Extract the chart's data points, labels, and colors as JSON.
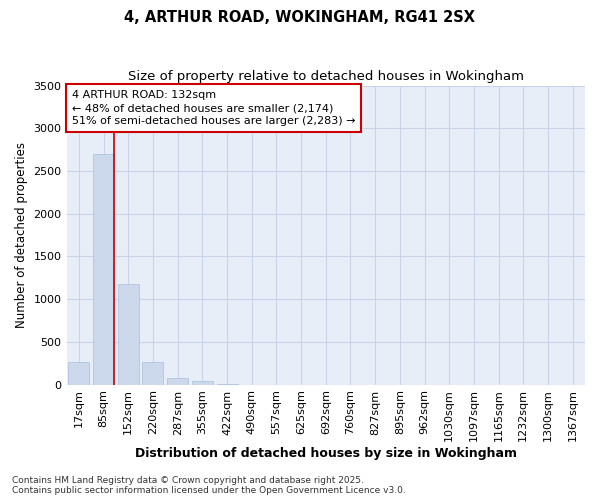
{
  "title_line1": "4, ARTHUR ROAD, WOKINGHAM, RG41 2SX",
  "title_line2": "Size of property relative to detached houses in Wokingham",
  "xlabel": "Distribution of detached houses by size in Wokingham",
  "ylabel": "Number of detached properties",
  "bar_color": "#ccd9ec",
  "bar_edge_color": "#b0c4de",
  "categories": [
    "17sqm",
    "85sqm",
    "152sqm",
    "220sqm",
    "287sqm",
    "355sqm",
    "422sqm",
    "490sqm",
    "557sqm",
    "625sqm",
    "692sqm",
    "760sqm",
    "827sqm",
    "895sqm",
    "962sqm",
    "1030sqm",
    "1097sqm",
    "1165sqm",
    "1232sqm",
    "1300sqm",
    "1367sqm"
  ],
  "values": [
    265,
    2700,
    1175,
    270,
    80,
    40,
    10,
    0,
    0,
    0,
    0,
    0,
    0,
    0,
    0,
    0,
    0,
    0,
    0,
    0,
    0
  ],
  "ylim": [
    0,
    3500
  ],
  "yticks": [
    0,
    500,
    1000,
    1500,
    2000,
    2500,
    3000,
    3500
  ],
  "property_label": "4 ARTHUR ROAD: 132sqm",
  "annotation_line1": "← 48% of detached houses are smaller (2,174)",
  "annotation_line2": "51% of semi-detached houses are larger (2,283) →",
  "vline_x": 1.42,
  "vline_color": "#cc0000",
  "annotation_box_color": "#cc0000",
  "grid_color": "#c8d4e8",
  "bg_color": "#e8eef8",
  "footer1": "Contains HM Land Registry data © Crown copyright and database right 2025.",
  "footer2": "Contains public sector information licensed under the Open Government Licence v3.0.",
  "title_fontsize": 10.5,
  "subtitle_fontsize": 9.5,
  "tick_fontsize": 8,
  "ylabel_fontsize": 8.5,
  "xlabel_fontsize": 9,
  "annotation_fontsize": 8,
  "footer_fontsize": 6.5
}
